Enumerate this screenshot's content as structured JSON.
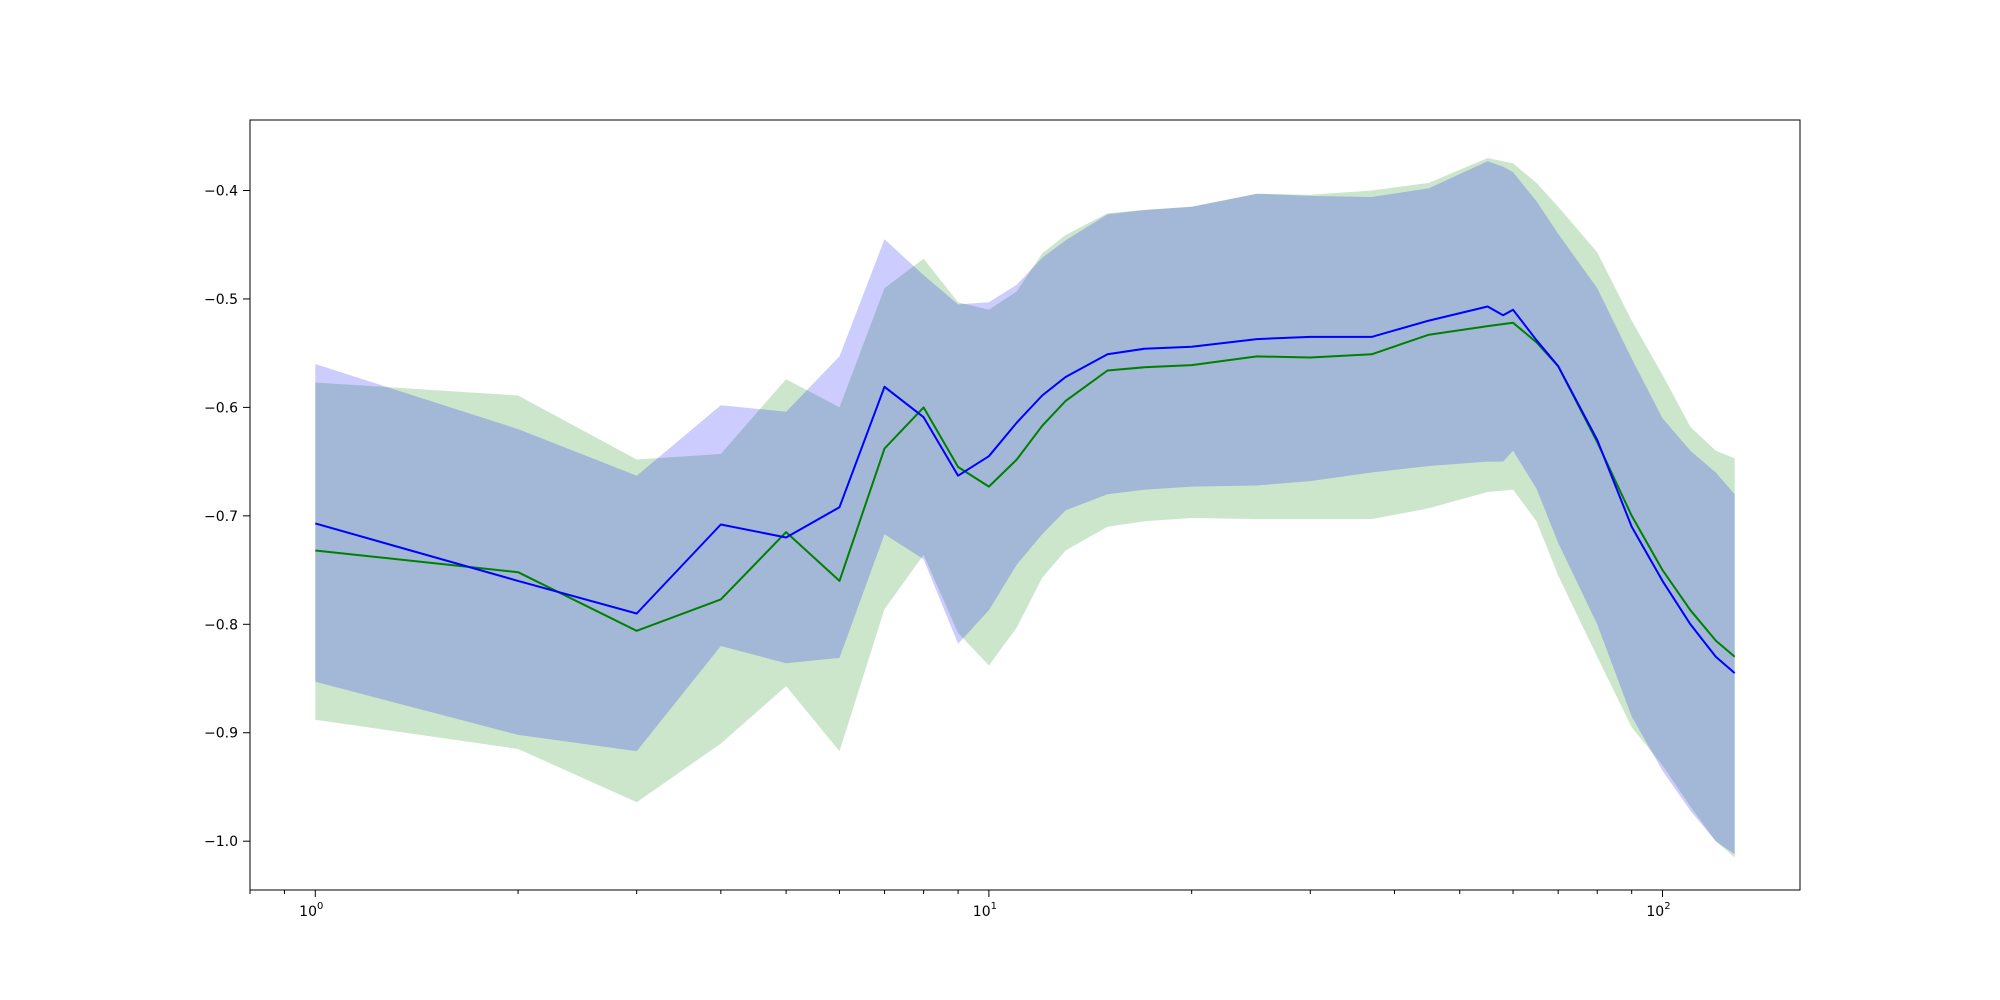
{
  "chart_data": {
    "type": "line",
    "title": "",
    "xlabel": "",
    "ylabel": "",
    "xscale": "log",
    "xlim": [
      0.8,
      160
    ],
    "ylim": [
      -1.045,
      -0.335
    ],
    "grid": false,
    "legend": "none",
    "x_ticks": [
      {
        "value": 1,
        "label": "10",
        "exp": "0"
      },
      {
        "value": 10,
        "label": "10",
        "exp": "1"
      },
      {
        "value": 100,
        "label": "10",
        "exp": "2"
      }
    ],
    "y_ticks": [
      {
        "value": -0.4,
        "label": "−0.4"
      },
      {
        "value": -0.5,
        "label": "−0.5"
      },
      {
        "value": -0.6,
        "label": "−0.6"
      },
      {
        "value": -0.7,
        "label": "−0.7"
      },
      {
        "value": -0.8,
        "label": "−0.8"
      },
      {
        "value": -0.9,
        "label": "−0.9"
      },
      {
        "value": -1.0,
        "label": "−1.0"
      }
    ],
    "colors": {
      "green_line": "#008000",
      "blue_line": "#0000ff",
      "green_band": "#008000",
      "blue_band": "#0000ff",
      "band_opacity": 0.2
    },
    "series": [
      {
        "color": "green",
        "x": [
          1,
          2,
          3,
          4,
          5,
          6,
          7,
          8,
          9,
          10,
          11,
          12,
          13,
          15,
          17,
          20,
          25,
          30,
          37,
          45,
          55,
          60,
          65,
          70,
          80,
          90,
          100,
          110,
          120,
          128
        ],
        "y": [
          -0.732,
          -0.752,
          -0.806,
          -0.777,
          -0.715,
          -0.76,
          -0.638,
          -0.6,
          -0.655,
          -0.673,
          -0.648,
          -0.617,
          -0.594,
          -0.566,
          -0.563,
          -0.561,
          -0.553,
          -0.554,
          -0.551,
          -0.533,
          -0.525,
          -0.522,
          -0.54,
          -0.562,
          -0.632,
          -0.7,
          -0.75,
          -0.787,
          -0.815,
          -0.83
        ],
        "upper": [
          -0.577,
          -0.589,
          -0.648,
          -0.643,
          -0.574,
          -0.6,
          -0.49,
          -0.463,
          -0.503,
          -0.51,
          -0.493,
          -0.458,
          -0.441,
          -0.421,
          -0.418,
          -0.415,
          -0.403,
          -0.404,
          -0.4,
          -0.393,
          -0.37,
          -0.375,
          -0.393,
          -0.415,
          -0.457,
          -0.52,
          -0.57,
          -0.618,
          -0.64,
          -0.647
        ],
        "lower": [
          -0.888,
          -0.915,
          -0.964,
          -0.91,
          -0.857,
          -0.917,
          -0.786,
          -0.736,
          -0.808,
          -0.838,
          -0.803,
          -0.757,
          -0.732,
          -0.71,
          -0.705,
          -0.702,
          -0.703,
          -0.703,
          -0.703,
          -0.693,
          -0.678,
          -0.676,
          -0.705,
          -0.755,
          -0.83,
          -0.895,
          -0.93,
          -0.968,
          -1.0,
          -1.015
        ]
      },
      {
        "color": "blue",
        "x": [
          1,
          2,
          3,
          4,
          5,
          6,
          7,
          8,
          9,
          10,
          11,
          12,
          13,
          15,
          17,
          20,
          25,
          30,
          37,
          45,
          55,
          58,
          60,
          65,
          70,
          80,
          90,
          100,
          110,
          120,
          128
        ],
        "y": [
          -0.707,
          -0.76,
          -0.79,
          -0.708,
          -0.72,
          -0.692,
          -0.581,
          -0.609,
          -0.663,
          -0.645,
          -0.614,
          -0.589,
          -0.572,
          -0.551,
          -0.546,
          -0.544,
          -0.537,
          -0.535,
          -0.535,
          -0.52,
          -0.507,
          -0.515,
          -0.51,
          -0.538,
          -0.562,
          -0.63,
          -0.71,
          -0.76,
          -0.8,
          -0.83,
          -0.845
        ],
        "upper": [
          -0.56,
          -0.62,
          -0.663,
          -0.598,
          -0.604,
          -0.553,
          -0.445,
          -0.478,
          -0.505,
          -0.503,
          -0.487,
          -0.462,
          -0.446,
          -0.422,
          -0.418,
          -0.415,
          -0.403,
          -0.405,
          -0.406,
          -0.398,
          -0.373,
          -0.378,
          -0.383,
          -0.41,
          -0.44,
          -0.49,
          -0.555,
          -0.61,
          -0.64,
          -0.66,
          -0.68
        ],
        "lower": [
          -0.853,
          -0.902,
          -0.917,
          -0.82,
          -0.836,
          -0.831,
          -0.717,
          -0.74,
          -0.818,
          -0.787,
          -0.745,
          -0.717,
          -0.695,
          -0.68,
          -0.676,
          -0.673,
          -0.672,
          -0.668,
          -0.66,
          -0.654,
          -0.65,
          -0.65,
          -0.64,
          -0.675,
          -0.725,
          -0.8,
          -0.885,
          -0.935,
          -0.972,
          -1.0,
          -1.012
        ]
      }
    ]
  }
}
